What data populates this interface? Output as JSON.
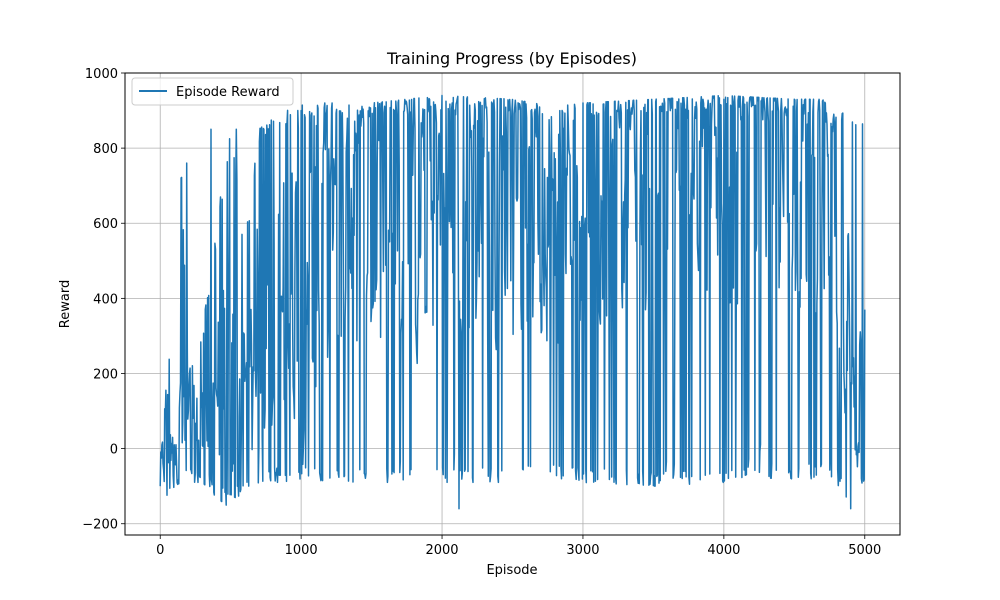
{
  "chart_data": {
    "type": "line",
    "title": "Training Progress (by Episodes)",
    "xlabel": "Episode",
    "ylabel": "Reward",
    "xlim": [
      -250,
      5250
    ],
    "ylim": [
      -230,
      1000
    ],
    "xticks": [
      0,
      1000,
      2000,
      3000,
      4000,
      5000
    ],
    "xtick_labels": [
      "0",
      "1000",
      "2000",
      "3000",
      "4000",
      "5000"
    ],
    "yticks": [
      -200,
      0,
      200,
      400,
      600,
      800,
      1000
    ],
    "ytick_labels": [
      "−200",
      "0",
      "200",
      "400",
      "600",
      "800",
      "1000"
    ],
    "grid": true,
    "legend_position": "upper-left",
    "series": [
      {
        "name": "Episode Reward",
        "color": "#1f77b4",
        "episodes": 5000,
        "envelope": {
          "x": [
            0,
            50,
            100,
            150,
            200,
            300,
            400,
            500,
            600,
            700,
            800,
            900,
            1000,
            1100,
            1200,
            1500,
            2000,
            2500,
            2800,
            3000,
            3500,
            4000,
            4500,
            4700,
            4800,
            4900,
            5000
          ],
          "low": [
            -110,
            -140,
            -100,
            -90,
            -90,
            -90,
            -130,
            -160,
            -100,
            -100,
            -90,
            -90,
            -80,
            -90,
            -90,
            -90,
            -90,
            -90,
            -80,
            -90,
            -100,
            -90,
            -80,
            -80,
            -90,
            -160,
            -90
          ],
          "high": [
            -10,
            220,
            330,
            760,
            200,
            320,
            600,
            850,
            550,
            850,
            880,
            900,
            920,
            920,
            920,
            920,
            940,
            930,
            910,
            920,
            930,
            940,
            930,
            930,
            880,
            910,
            860
          ],
          "median": [
            -60,
            50,
            40,
            150,
            -20,
            60,
            100,
            150,
            100,
            300,
            350,
            400,
            500,
            500,
            600,
            650,
            650,
            650,
            600,
            700,
            700,
            720,
            750,
            700,
            400,
            300,
            200
          ]
        },
        "sample_values": [
          {
            "x": 0,
            "y": -100
          },
          {
            "x": 190,
            "y": 760
          },
          {
            "x": 360,
            "y": 850
          },
          {
            "x": 540,
            "y": 850
          },
          {
            "x": 1000,
            "y": 900
          },
          {
            "x": 2000,
            "y": 940
          },
          {
            "x": 2120,
            "y": -160
          },
          {
            "x": 3000,
            "y": 920
          },
          {
            "x": 4000,
            "y": 930
          },
          {
            "x": 4900,
            "y": -160
          },
          {
            "x": 5000,
            "y": 370
          }
        ]
      }
    ]
  }
}
